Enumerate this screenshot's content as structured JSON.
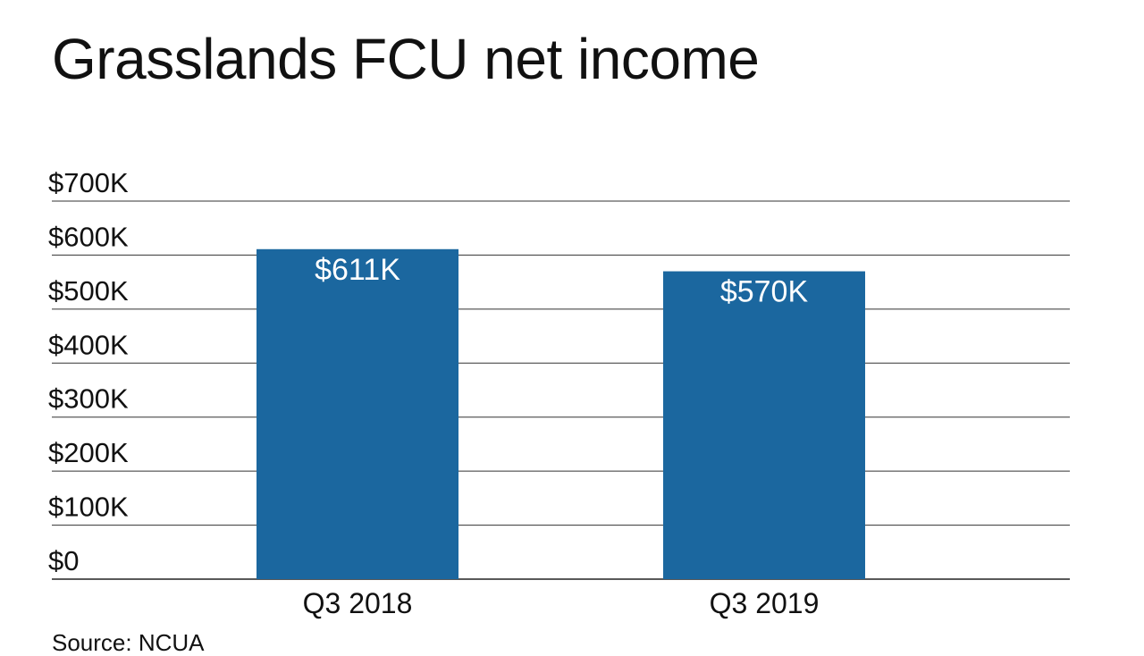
{
  "chart_data": {
    "type": "bar",
    "title": "Grasslands FCU net income",
    "categories": [
      "Q3 2018",
      "Q3 2019"
    ],
    "values": [
      611,
      570
    ],
    "units": "thousands of dollars",
    "data_labels": [
      "$611K",
      "$570K"
    ],
    "yticks": [
      "$0",
      "$100K",
      "$200K",
      "$300K",
      "$400K",
      "$500K",
      "$600K",
      "$700K"
    ],
    "ylim": [
      0,
      700
    ],
    "xlabel": "",
    "ylabel": "",
    "grid": true,
    "bar_color": "#1b679f",
    "source": "Source: NCUA"
  }
}
